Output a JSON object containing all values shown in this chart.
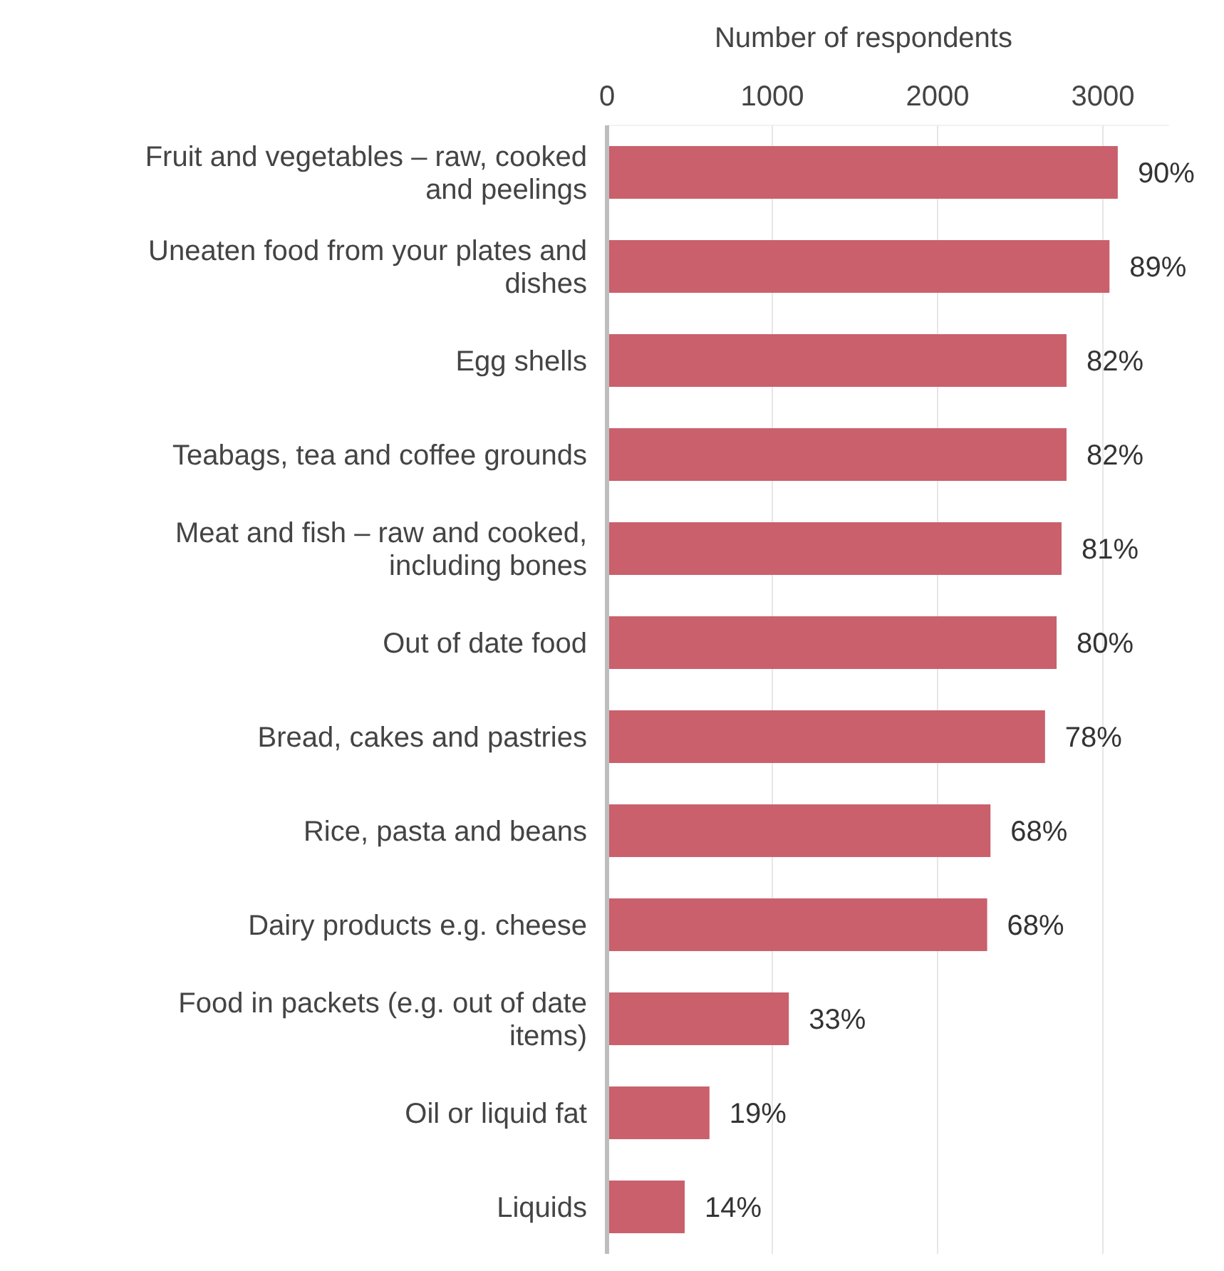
{
  "chart_data": {
    "type": "bar",
    "orientation": "horizontal",
    "xlabel": "Number of respondents",
    "categories": [
      "Fruit and vegetables – raw, cooked and peelings",
      "Uneaten food from your plates and dishes",
      "Egg shells",
      "Teabags, tea and coffee grounds",
      "Meat and fish – raw and cooked, including bones",
      "Out of date food",
      "Bread, cakes and pastries",
      "Rice, pasta and beans",
      "Dairy products e.g. cheese",
      "Food in packets (e.g. out of date items)",
      "Oil or liquid fat",
      "Liquids"
    ],
    "values": [
      3090,
      3040,
      2780,
      2780,
      2750,
      2720,
      2650,
      2320,
      2300,
      1100,
      620,
      470
    ],
    "annotations": [
      {
        "text": "90%",
        "x": 3090,
        "y": "Fruit and vegetables – raw, cooked and peelings"
      },
      {
        "text": "89%",
        "x": 3040,
        "y": "Uneaten food from your plates and dishes"
      },
      {
        "text": "82%",
        "x": 2780,
        "y": "Egg shells"
      },
      {
        "text": "82%",
        "x": 2780,
        "y": "Teabags, tea and coffee grounds"
      },
      {
        "text": "81%",
        "x": 2750,
        "y": "Meat and fish – raw and cooked, including bones"
      },
      {
        "text": "80%",
        "x": 2720,
        "y": "Out of date food"
      },
      {
        "text": "78%",
        "x": 2650,
        "y": "Bread, cakes and pastries"
      },
      {
        "text": "68%",
        "x": 2320,
        "y": "Rice, pasta and beans"
      },
      {
        "text": "68%",
        "x": 2300,
        "y": "Dairy products e.g. cheese"
      },
      {
        "text": "33%",
        "x": 1100,
        "y": "Food in packets (e.g. out of date items)"
      },
      {
        "text": "19%",
        "x": 620,
        "y": "Oil or liquid fat"
      },
      {
        "text": "14%",
        "x": 470,
        "y": "Liquids"
      }
    ],
    "color": "#c9606c",
    "xlim": [
      0,
      3400
    ],
    "xticks": [
      0,
      1000,
      2000,
      3000
    ],
    "grid": "x"
  }
}
